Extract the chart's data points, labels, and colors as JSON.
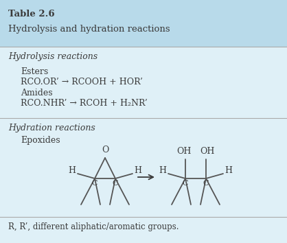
{
  "header_bg": "#b8daea",
  "body_bg": "#dff0f7",
  "title_bold": "Table 2.6",
  "title_normal": "Hydrolysis and hydration reactions",
  "section1_italic": "Hydrolysis reactions",
  "section1_items": [
    "Esters",
    "RCO.OR’ → RCOOH + HOR’",
    "Amides",
    "RCO.NHR’ → RCOH + H₂NR’"
  ],
  "section2_italic": "Hydration reactions",
  "section2_item": "Epoxides",
  "footnote": "R, R’, different aliphatic/aromatic groups.",
  "text_color": "#3a3a3a",
  "line_color": "#aaaaaa"
}
